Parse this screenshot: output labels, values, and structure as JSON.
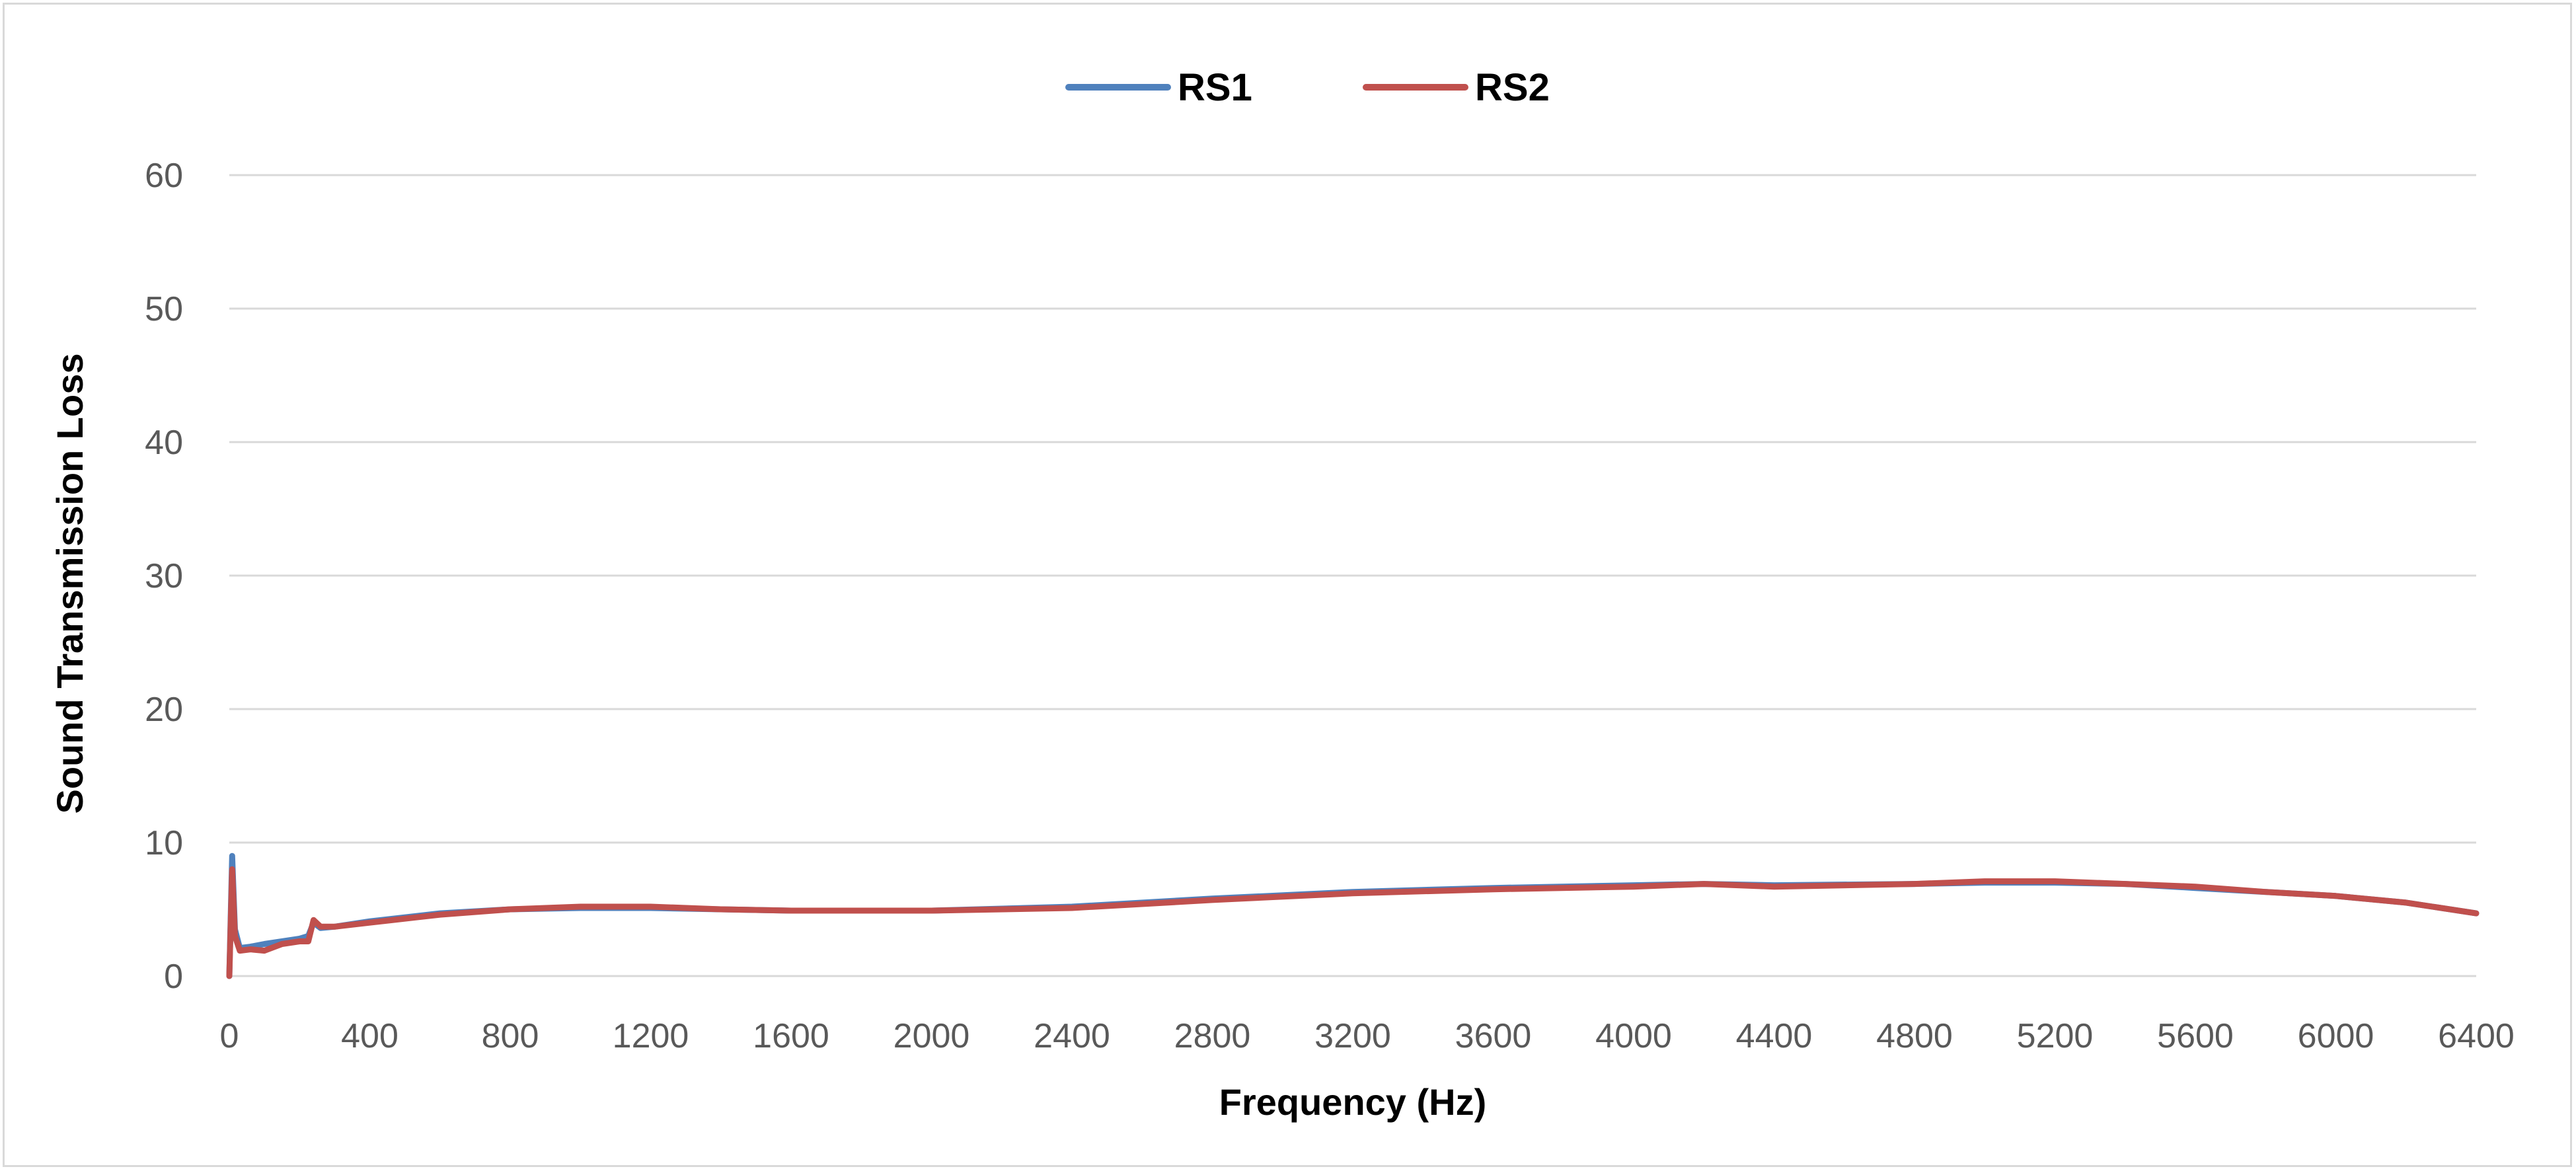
{
  "chart_data": {
    "type": "line",
    "xlabel": "Frequency (Hz)",
    "ylabel": "Sound Transmission Loss",
    "xlim": [
      0,
      6400
    ],
    "ylim": [
      0,
      60
    ],
    "x_ticks": [
      "0",
      "400",
      "800",
      "1200",
      "1600",
      "2000",
      "2400",
      "2800",
      "3200",
      "3600",
      "4000",
      "4400",
      "4800",
      "5200",
      "5600",
      "6000",
      "6400"
    ],
    "y_ticks": [
      "0",
      "10",
      "20",
      "30",
      "40",
      "50",
      "60"
    ],
    "grid": true,
    "legend_position": "top",
    "series": [
      {
        "name": "RS1",
        "color": "#4f81bd",
        "points": [
          [
            0,
            0
          ],
          [
            8,
            9.0
          ],
          [
            16,
            3.5
          ],
          [
            30,
            2.1
          ],
          [
            60,
            2.2
          ],
          [
            100,
            2.4
          ],
          [
            150,
            2.6
          ],
          [
            200,
            2.8
          ],
          [
            225,
            3.0
          ],
          [
            240,
            4.0
          ],
          [
            260,
            3.6
          ],
          [
            300,
            3.7
          ],
          [
            400,
            4.1
          ],
          [
            600,
            4.7
          ],
          [
            800,
            5.0
          ],
          [
            1000,
            5.1
          ],
          [
            1200,
            5.1
          ],
          [
            1400,
            5.0
          ],
          [
            1600,
            4.9
          ],
          [
            2000,
            4.9
          ],
          [
            2400,
            5.2
          ],
          [
            2800,
            5.8
          ],
          [
            3200,
            6.3
          ],
          [
            3600,
            6.6
          ],
          [
            4000,
            6.8
          ],
          [
            4200,
            6.9
          ],
          [
            4400,
            6.8
          ],
          [
            4800,
            6.9
          ],
          [
            5000,
            7.0
          ],
          [
            5200,
            7.0
          ],
          [
            5400,
            6.9
          ],
          [
            5600,
            6.6
          ],
          [
            5800,
            6.3
          ],
          [
            6000,
            6.0
          ],
          [
            6200,
            5.5
          ],
          [
            6400,
            4.7
          ]
        ]
      },
      {
        "name": "RS2",
        "color": "#c0504d",
        "points": [
          [
            0,
            0
          ],
          [
            8,
            8.0
          ],
          [
            16,
            3.0
          ],
          [
            30,
            1.9
          ],
          [
            60,
            2.0
          ],
          [
            100,
            1.9
          ],
          [
            150,
            2.4
          ],
          [
            200,
            2.6
          ],
          [
            225,
            2.6
          ],
          [
            240,
            4.2
          ],
          [
            260,
            3.7
          ],
          [
            300,
            3.7
          ],
          [
            400,
            4.0
          ],
          [
            600,
            4.6
          ],
          [
            800,
            5.0
          ],
          [
            1000,
            5.2
          ],
          [
            1200,
            5.2
          ],
          [
            1400,
            5.0
          ],
          [
            1600,
            4.9
          ],
          [
            2000,
            4.9
          ],
          [
            2400,
            5.1
          ],
          [
            2800,
            5.7
          ],
          [
            3200,
            6.2
          ],
          [
            3600,
            6.5
          ],
          [
            4000,
            6.7
          ],
          [
            4200,
            6.9
          ],
          [
            4400,
            6.7
          ],
          [
            4800,
            6.9
          ],
          [
            5000,
            7.1
          ],
          [
            5200,
            7.1
          ],
          [
            5400,
            6.9
          ],
          [
            5600,
            6.7
          ],
          [
            5800,
            6.3
          ],
          [
            6000,
            6.0
          ],
          [
            6200,
            5.5
          ],
          [
            6400,
            4.7
          ]
        ]
      }
    ]
  }
}
